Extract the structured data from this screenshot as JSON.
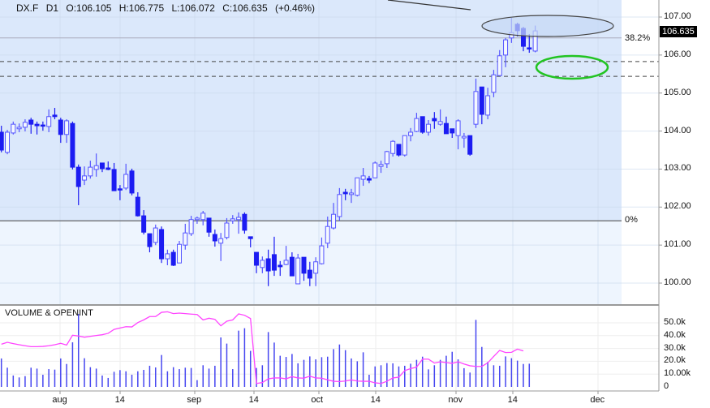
{
  "header": {
    "symbol": "DX.F",
    "timeframe": "D1",
    "open": "O:106.105",
    "high": "H:106.775",
    "low": "L:106.072",
    "close": "C:106.635",
    "change": "(+0.46%)"
  },
  "last_price_tag": "106.635",
  "fib_levels": [
    {
      "label": "38.2%",
      "price": 106.45
    },
    {
      "label": "0%",
      "price": 101.64
    }
  ],
  "dashed_levels": [
    105.83,
    105.44
  ],
  "volume_pane": {
    "title": "VOLUME & OPENINT"
  },
  "colors": {
    "bull_outline": "#5555ff",
    "bear_fill": "#1c1cf2",
    "volume": "#4646f0",
    "open_interest": "#ff44ff",
    "fib_zone": "#dbe8fb",
    "below_zone": "#eef5fe",
    "highlight_blue": "#c6d9f5",
    "highlight_green": "#22c422"
  },
  "chart_data": [
    {
      "type": "candlestick",
      "title": "DX.F D1",
      "y_ticks": [
        "107.00",
        "106.00",
        "105.00",
        "104.00",
        "103.00",
        "102.00",
        "101.00",
        "100.00"
      ],
      "x_ticks": [
        "aug",
        "14",
        "sep",
        "14",
        "oct",
        "14",
        "nov",
        "14",
        "dec"
      ],
      "ylim": [
        99.5,
        107.4
      ],
      "grid": true,
      "ohlc": [
        [
          103.97,
          104.14,
          103.44,
          103.5
        ],
        [
          103.44,
          104.03,
          103.39,
          103.97
        ],
        [
          103.95,
          104.25,
          103.91,
          104.18
        ],
        [
          104.06,
          104.2,
          103.97,
          104.1
        ],
        [
          104.1,
          104.31,
          103.99,
          104.23
        ],
        [
          104.29,
          104.35,
          103.93,
          104.18
        ],
        [
          104.18,
          104.25,
          103.91,
          104.14
        ],
        [
          104.16,
          104.25,
          104.01,
          104.14
        ],
        [
          104.12,
          104.57,
          103.97,
          104.38
        ],
        [
          104.42,
          104.61,
          104.31,
          104.38
        ],
        [
          104.29,
          104.35,
          103.69,
          103.91
        ],
        [
          103.91,
          104.31,
          103.69,
          104.27
        ],
        [
          104.2,
          104.25,
          102.99,
          103.05
        ],
        [
          103.05,
          103.12,
          102.05,
          102.54
        ],
        [
          102.71,
          103.07,
          102.58,
          102.82
        ],
        [
          102.82,
          103.22,
          102.75,
          103.05
        ],
        [
          102.99,
          103.41,
          102.8,
          103.09
        ],
        [
          103.16,
          103.16,
          102.92,
          103.01
        ],
        [
          103.03,
          103.2,
          102.97,
          102.99
        ],
        [
          102.99,
          103.16,
          102.43,
          102.43
        ],
        [
          102.48,
          102.58,
          102.18,
          102.45
        ],
        [
          102.5,
          103.14,
          102.45,
          102.86
        ],
        [
          102.95,
          103.01,
          102.31,
          102.37
        ],
        [
          102.26,
          102.39,
          101.75,
          101.77
        ],
        [
          101.77,
          101.92,
          101.28,
          101.34
        ],
        [
          101.3,
          101.3,
          100.81,
          100.96
        ],
        [
          101.07,
          101.54,
          101.0,
          101.45
        ],
        [
          101.41,
          101.49,
          100.53,
          100.64
        ],
        [
          100.64,
          100.88,
          100.47,
          100.77
        ],
        [
          100.81,
          100.88,
          100.45,
          100.47
        ],
        [
          100.53,
          101.11,
          100.53,
          101.02
        ],
        [
          101.0,
          101.56,
          100.88,
          101.32
        ],
        [
          101.3,
          101.77,
          101.24,
          101.67
        ],
        [
          101.67,
          101.75,
          101.56,
          101.71
        ],
        [
          101.67,
          101.9,
          101.52,
          101.84
        ],
        [
          101.71,
          101.71,
          101.22,
          101.34
        ],
        [
          101.28,
          101.41,
          100.96,
          101.11
        ],
        [
          101.05,
          101.32,
          100.58,
          101.17
        ],
        [
          101.2,
          101.71,
          101.15,
          101.58
        ],
        [
          101.64,
          101.79,
          101.56,
          101.69
        ],
        [
          101.67,
          101.86,
          101.3,
          101.73
        ],
        [
          101.81,
          101.86,
          101.3,
          101.39
        ],
        [
          101.22,
          101.22,
          100.94,
          101.17
        ],
        [
          100.81,
          100.81,
          100.26,
          100.47
        ],
        [
          100.41,
          100.7,
          100.26,
          100.6
        ],
        [
          100.64,
          100.88,
          99.92,
          100.32
        ],
        [
          100.75,
          101.22,
          100.19,
          100.34
        ],
        [
          100.47,
          100.58,
          100.19,
          100.43
        ],
        [
          100.49,
          100.98,
          100.47,
          100.6
        ],
        [
          100.68,
          100.81,
          100.19,
          100.19
        ],
        [
          99.98,
          100.77,
          99.98,
          100.66
        ],
        [
          100.68,
          100.68,
          100.06,
          100.26
        ],
        [
          100.34,
          100.56,
          99.92,
          100.13
        ],
        [
          100.26,
          100.68,
          99.92,
          100.56
        ],
        [
          100.51,
          101.2,
          100.49,
          100.98
        ],
        [
          101.05,
          101.75,
          100.92,
          101.49
        ],
        [
          101.45,
          102.11,
          101.41,
          101.81
        ],
        [
          101.75,
          102.5,
          101.64,
          102.33
        ],
        [
          102.39,
          102.48,
          102.18,
          102.35
        ],
        [
          102.33,
          102.48,
          102.11,
          102.37
        ],
        [
          102.31,
          102.77,
          102.28,
          102.77
        ],
        [
          102.73,
          103.03,
          102.56,
          102.82
        ],
        [
          102.75,
          102.82,
          102.63,
          102.71
        ],
        [
          102.77,
          103.2,
          102.77,
          103.16
        ],
        [
          103.07,
          103.22,
          102.9,
          103.12
        ],
        [
          103.14,
          103.48,
          103.03,
          103.46
        ],
        [
          103.41,
          103.76,
          103.33,
          103.73
        ],
        [
          103.65,
          103.65,
          103.33,
          103.37
        ],
        [
          103.37,
          103.88,
          103.33,
          103.88
        ],
        [
          103.88,
          104.08,
          103.73,
          103.97
        ],
        [
          103.99,
          104.48,
          103.97,
          104.33
        ],
        [
          104.38,
          104.38,
          103.93,
          103.97
        ],
        [
          103.97,
          104.29,
          103.88,
          104.18
        ],
        [
          104.33,
          104.5,
          104.06,
          104.27
        ],
        [
          104.18,
          104.57,
          104.14,
          104.25
        ],
        [
          104.2,
          104.38,
          103.93,
          103.93
        ],
        [
          104.06,
          104.06,
          103.82,
          103.95
        ],
        [
          103.88,
          104.31,
          103.52,
          104.27
        ],
        [
          103.82,
          103.95,
          103.56,
          103.86
        ],
        [
          103.88,
          103.88,
          103.35,
          103.39
        ],
        [
          104.18,
          105.38,
          104.08,
          105.04
        ],
        [
          105.16,
          105.16,
          104.18,
          104.44
        ],
        [
          104.42,
          105.14,
          104.31,
          104.93
        ],
        [
          105.02,
          105.61,
          104.89,
          105.48
        ],
        [
          105.46,
          106.13,
          105.44,
          105.98
        ],
        [
          106.0,
          106.45,
          105.68,
          106.4
        ],
        [
          106.45,
          106.98,
          106.32,
          106.59
        ],
        [
          106.81,
          106.85,
          106.49,
          106.64
        ],
        [
          106.7,
          106.74,
          106.1,
          106.23
        ],
        [
          106.19,
          106.55,
          106.06,
          106.17
        ],
        [
          106.105,
          106.775,
          106.072,
          106.635
        ]
      ]
    },
    {
      "type": "bar+line",
      "title": "VOLUME & OPENINT",
      "y_ticks": [
        "50.0k",
        "40.0k",
        "30.0k",
        "20.0k",
        "10.00k",
        "0"
      ],
      "ylim": [
        0,
        60000
      ],
      "series": [
        {
          "name": "VOLUME",
          "type": "bar",
          "values_k": [
            22.2,
            15.0,
            8.9,
            7.4,
            8.4,
            15.0,
            14.3,
            9.5,
            13.9,
            13.5,
            22.2,
            17.9,
            34.8,
            57.0,
            22.4,
            15.4,
            14.3,
            8.9,
            7.0,
            11.8,
            13.1,
            12.2,
            9.5,
            12.2,
            13.3,
            16.5,
            15.2,
            24.9,
            12.2,
            15.4,
            13.9,
            15.0,
            14.8,
            5.3,
            16.9,
            14.3,
            16.5,
            38.6,
            33.8,
            13.9,
            43.9,
            45.8,
            28.1,
            14.8,
            16.9,
            42.8,
            34.6,
            24.3,
            23.4,
            25.7,
            18.4,
            21.1,
            23.8,
            21.5,
            23.2,
            23.6,
            29.5,
            33.1,
            28.7,
            22.2,
            20.0,
            27.0,
            9.5,
            16.0,
            16.9,
            18.6,
            18.4,
            16.0,
            16.5,
            18.1,
            21.1,
            23.6,
            13.7,
            16.9,
            21.1,
            24.3,
            27.4,
            21.5,
            14.6,
            11.2,
            52.3,
            31.2,
            19.6,
            16.9,
            16.5,
            23.8,
            22.4,
            20.5,
            17.9,
            18.1,
            null
          ]
        },
        {
          "name": "OPENINT",
          "type": "line",
          "values_k": [
            33.3,
            34.8,
            33.8,
            32.9,
            32.1,
            31.4,
            31.4,
            31.6,
            32.1,
            32.9,
            34.0,
            32.7,
            40.3,
            39.7,
            38.8,
            39.5,
            40.1,
            40.7,
            41.8,
            44.9,
            46.0,
            47.0,
            46.8,
            50.2,
            52.3,
            54.9,
            54.9,
            58.2,
            58.6,
            57.2,
            57.6,
            57.2,
            56.8,
            56.5,
            52.3,
            53.6,
            52.7,
            47.7,
            51.3,
            52.3,
            57.0,
            55.9,
            53.4,
            2.7,
            3.4,
            6.3,
            7.0,
            7.0,
            6.3,
            8.0,
            7.0,
            6.8,
            8.4,
            7.0,
            6.8,
            5.5,
            4.4,
            4.2,
            4.6,
            5.5,
            4.6,
            4.4,
            4.4,
            3.2,
            2.7,
            4.4,
            7.0,
            7.6,
            12.7,
            14.3,
            15.4,
            21.7,
            21.7,
            18.6,
            19.6,
            19.0,
            18.4,
            19.6,
            17.9,
            16.5,
            16.0,
            16.0,
            18.8,
            23.8,
            28.5,
            26.8,
            27.0,
            29.5,
            28.1,
            null,
            null
          ]
        }
      ]
    }
  ]
}
